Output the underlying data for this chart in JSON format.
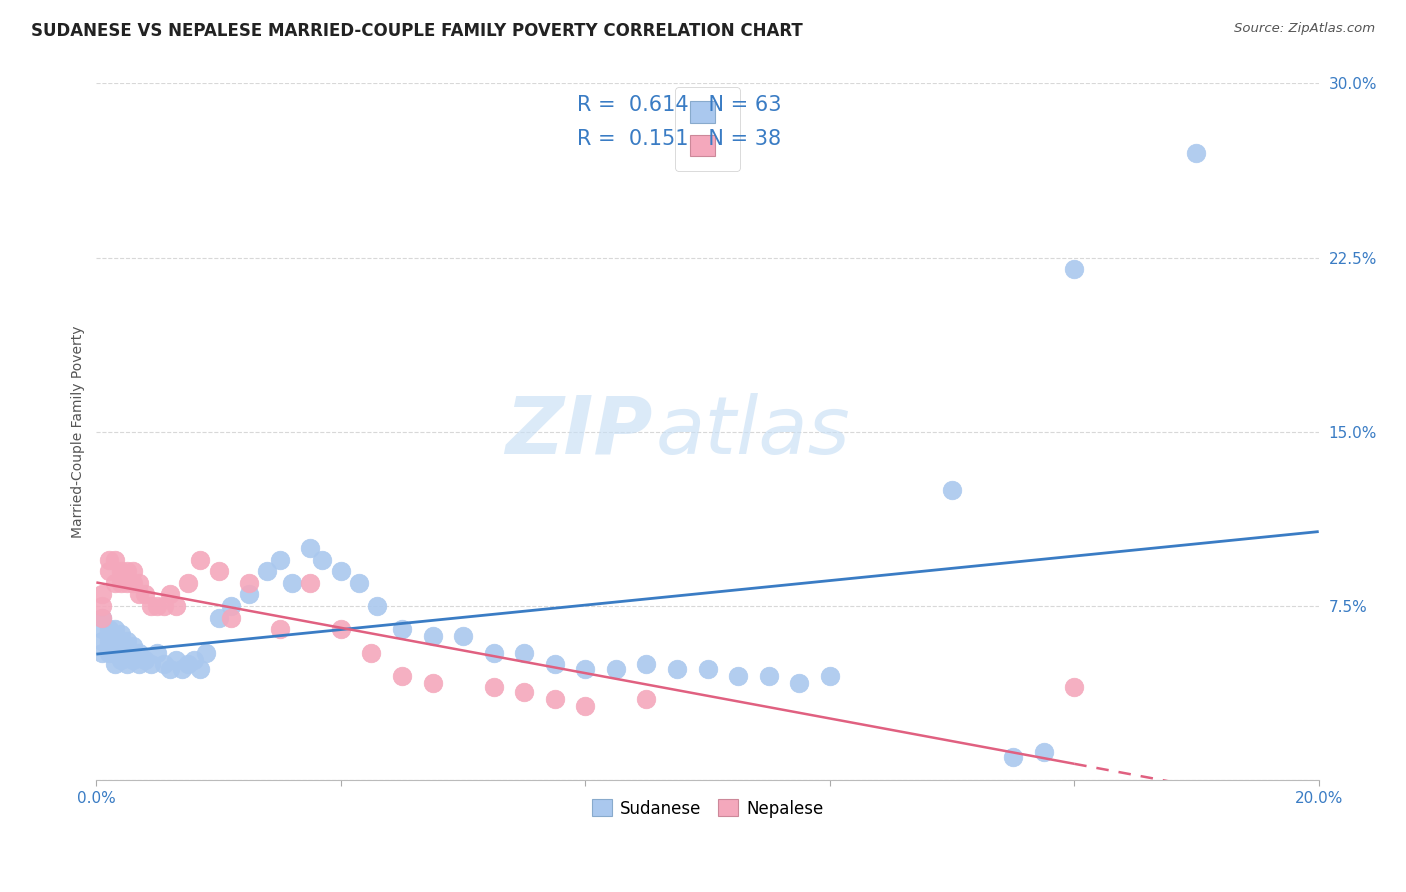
{
  "title": "SUDANESE VS NEPALESE MARRIED-COUPLE FAMILY POVERTY CORRELATION CHART",
  "source": "Source: ZipAtlas.com",
  "ylabel": "Married-Couple Family Poverty",
  "xlim": [
    0.0,
    0.2
  ],
  "ylim": [
    0.0,
    0.3
  ],
  "xticks": [
    0.0,
    0.04,
    0.08,
    0.12,
    0.16,
    0.2
  ],
  "yticks": [
    0.0,
    0.075,
    0.15,
    0.225,
    0.3
  ],
  "xtick_labels": [
    "0.0%",
    "",
    "",
    "",
    "",
    "20.0%"
  ],
  "ytick_labels": [
    "",
    "7.5%",
    "15.0%",
    "22.5%",
    "30.0%"
  ],
  "watermark_zip": "ZIP",
  "watermark_atlas": "atlas",
  "sudanese_color": "#aac8ee",
  "nepalese_color": "#f4a8bc",
  "sudanese_line_color": "#3a7cc4",
  "nepalese_line_color": "#e06080",
  "R_sudanese": 0.614,
  "N_sudanese": 63,
  "R_nepalese": 0.151,
  "N_nepalese": 38,
  "background_color": "#ffffff",
  "grid_color": "#d8d8d8",
  "title_fontsize": 12,
  "axis_label_fontsize": 10,
  "tick_fontsize": 11,
  "legend_fontsize": 15,
  "sudanese_x": [
    0.001,
    0.001,
    0.001,
    0.001,
    0.002,
    0.002,
    0.002,
    0.003,
    0.003,
    0.003,
    0.003,
    0.004,
    0.004,
    0.004,
    0.005,
    0.005,
    0.005,
    0.006,
    0.006,
    0.007,
    0.007,
    0.008,
    0.009,
    0.01,
    0.011,
    0.012,
    0.013,
    0.014,
    0.015,
    0.016,
    0.017,
    0.018,
    0.02,
    0.022,
    0.025,
    0.028,
    0.03,
    0.032,
    0.035,
    0.037,
    0.04,
    0.043,
    0.046,
    0.05,
    0.055,
    0.06,
    0.065,
    0.07,
    0.075,
    0.08,
    0.085,
    0.09,
    0.095,
    0.1,
    0.105,
    0.11,
    0.115,
    0.12,
    0.14,
    0.15,
    0.155,
    0.16,
    0.18
  ],
  "sudanese_y": [
    0.055,
    0.06,
    0.065,
    0.07,
    0.055,
    0.06,
    0.065,
    0.05,
    0.055,
    0.06,
    0.065,
    0.052,
    0.058,
    0.063,
    0.05,
    0.055,
    0.06,
    0.052,
    0.058,
    0.05,
    0.055,
    0.052,
    0.05,
    0.055,
    0.05,
    0.048,
    0.052,
    0.048,
    0.05,
    0.052,
    0.048,
    0.055,
    0.07,
    0.075,
    0.08,
    0.09,
    0.095,
    0.085,
    0.1,
    0.095,
    0.09,
    0.085,
    0.075,
    0.065,
    0.062,
    0.062,
    0.055,
    0.055,
    0.05,
    0.048,
    0.048,
    0.05,
    0.048,
    0.048,
    0.045,
    0.045,
    0.042,
    0.045,
    0.125,
    0.01,
    0.012,
    0.22,
    0.27
  ],
  "nepalese_x": [
    0.001,
    0.001,
    0.001,
    0.002,
    0.002,
    0.003,
    0.003,
    0.004,
    0.004,
    0.005,
    0.005,
    0.006,
    0.006,
    0.007,
    0.007,
    0.008,
    0.009,
    0.01,
    0.011,
    0.012,
    0.013,
    0.015,
    0.017,
    0.02,
    0.022,
    0.025,
    0.03,
    0.035,
    0.04,
    0.045,
    0.05,
    0.055,
    0.065,
    0.07,
    0.075,
    0.08,
    0.09,
    0.16
  ],
  "nepalese_y": [
    0.07,
    0.075,
    0.08,
    0.09,
    0.095,
    0.085,
    0.095,
    0.085,
    0.09,
    0.085,
    0.09,
    0.085,
    0.09,
    0.08,
    0.085,
    0.08,
    0.075,
    0.075,
    0.075,
    0.08,
    0.075,
    0.085,
    0.095,
    0.09,
    0.07,
    0.085,
    0.065,
    0.085,
    0.065,
    0.055,
    0.045,
    0.042,
    0.04,
    0.038,
    0.035,
    0.032,
    0.035,
    0.04
  ]
}
